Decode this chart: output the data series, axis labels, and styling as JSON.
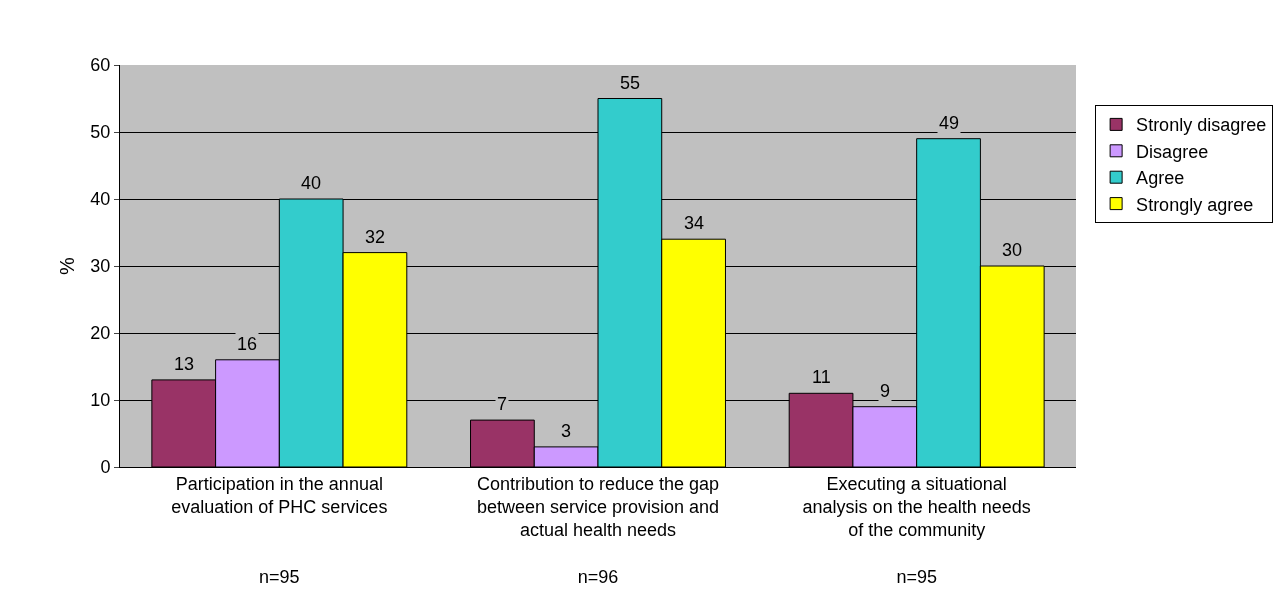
{
  "chart_data": {
    "type": "bar",
    "ylabel": "%",
    "categories": [
      "Participation in the annual\nevaluation of PHC services\n\n\nn=95",
      "Contribution to reduce the gap\nbetween service provision and\nactual health needs\n\nn=96",
      "Executing a situational\nanalysis on the health needs\nof the community\n\nn=95"
    ],
    "series": [
      {
        "name": "Stronly disagree",
        "color": "#993366",
        "values": [
          13,
          7,
          11
        ]
      },
      {
        "name": "Disagree",
        "color": "#cc99ff",
        "values": [
          16,
          3,
          9
        ]
      },
      {
        "name": "Agree",
        "color": "#33cccc",
        "values": [
          40,
          55,
          49
        ]
      },
      {
        "name": "Strongly agree",
        "color": "#ffff00",
        "values": [
          32,
          34,
          30
        ]
      }
    ],
    "ylim": [
      0,
      60
    ],
    "yticks": [
      0,
      10,
      20,
      30,
      40,
      50,
      60
    ],
    "grid": "y",
    "legend": "right",
    "data_labels": true
  }
}
